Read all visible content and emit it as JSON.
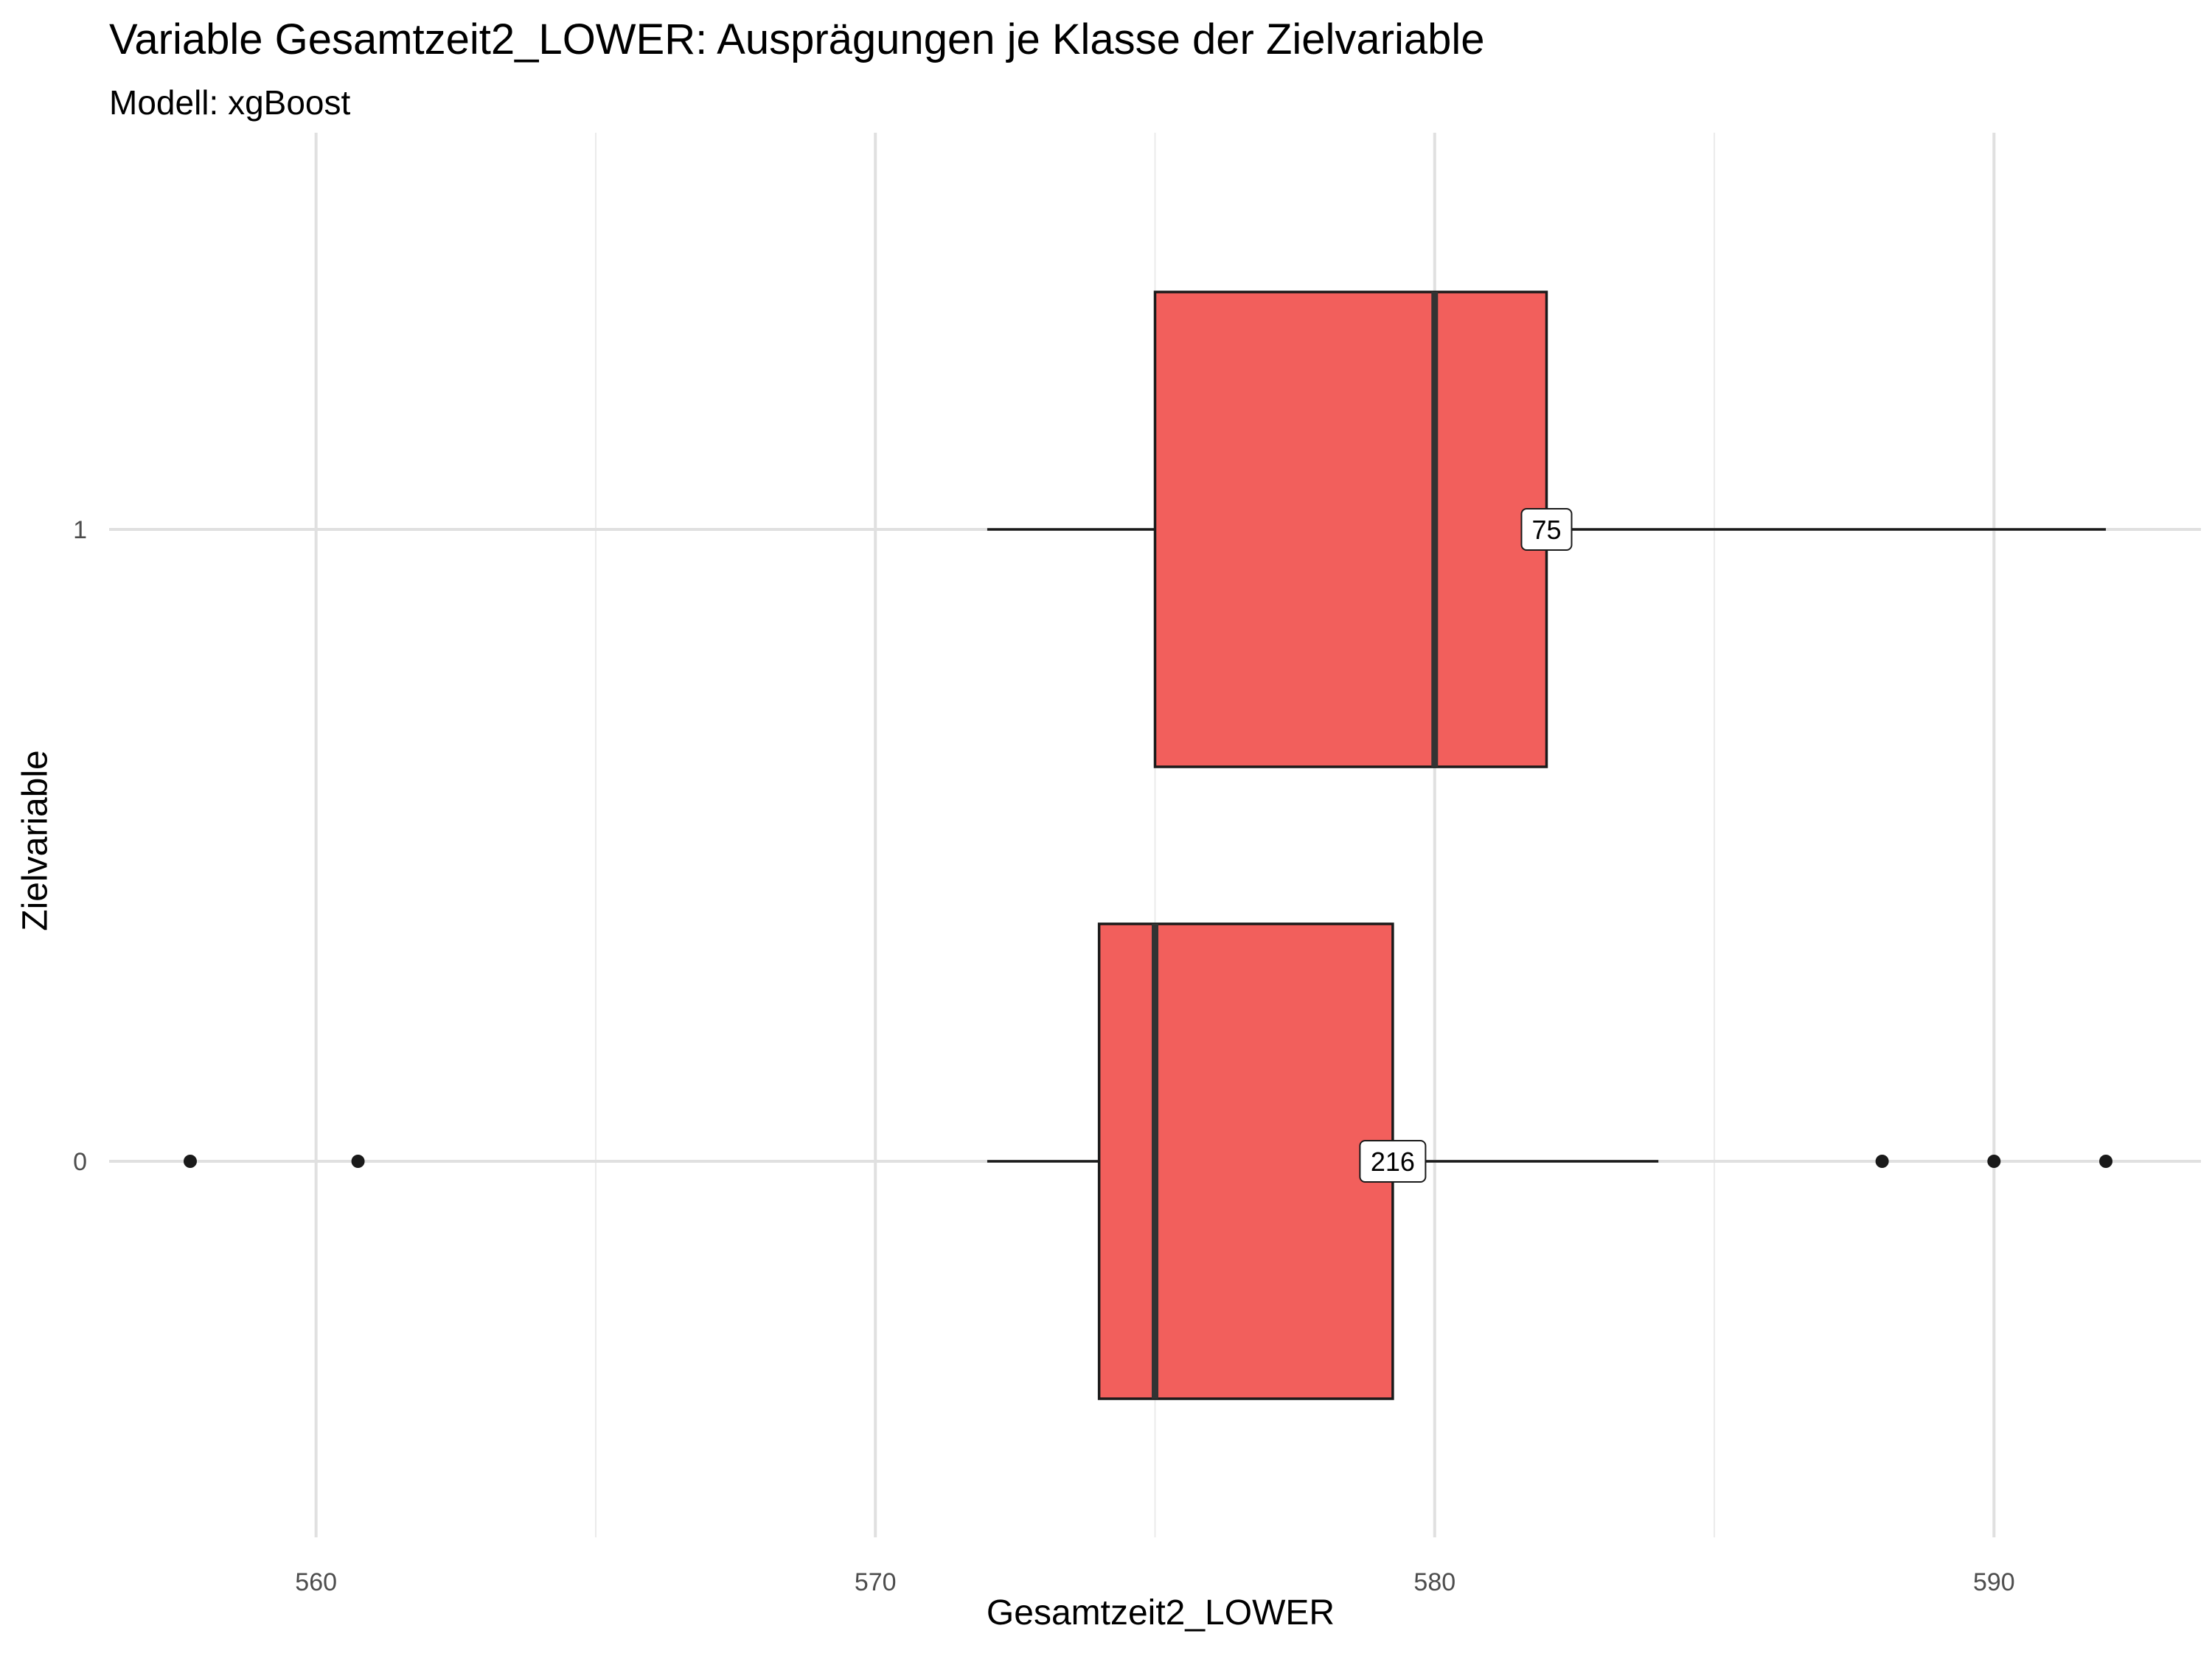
{
  "chart_data": {
    "type": "boxplot",
    "orientation": "horizontal",
    "title": "Variable Gesamtzeit2_LOWER: Ausprägungen je Klasse der Zielvariable",
    "subtitle": "Modell: xgBoost",
    "xlabel": "Gesamtzeit2_LOWER",
    "ylabel": "Zielvariable",
    "xlim": [
      556.3,
      593.7
    ],
    "x_ticks": [
      560,
      570,
      580,
      590
    ],
    "x_tick_labels": [
      "560",
      "570",
      "580",
      "590"
    ],
    "categories": [
      "0",
      "1"
    ],
    "fill_color": "#F25F5C",
    "grid": true,
    "series": [
      {
        "category": "1",
        "whisker_low": 572,
        "q1": 575,
        "median": 580,
        "q3": 582,
        "whisker_high": 592,
        "outliers": [],
        "count_label": "75"
      },
      {
        "category": "0",
        "whisker_low": 572,
        "q1": 574,
        "median": 575,
        "q3": 579.25,
        "whisker_high": 584,
        "outliers": [
          557.75,
          560.75,
          588,
          590,
          592
        ],
        "count_label": "216"
      }
    ]
  }
}
